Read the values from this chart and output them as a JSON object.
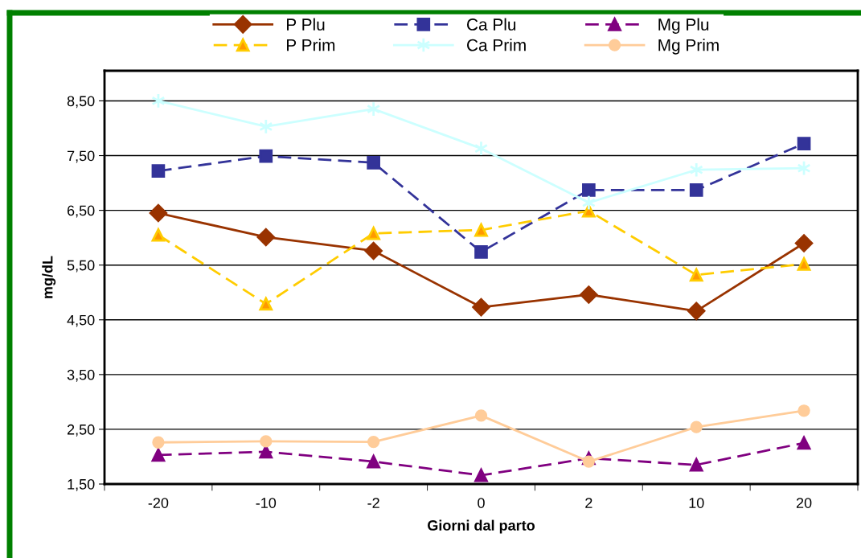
{
  "chart_data": {
    "type": "line",
    "xlabel": "Giorni dal parto",
    "ylabel": "mg/dL",
    "categories": [
      "-20",
      "-10",
      "-2",
      "0",
      "2",
      "10",
      "20"
    ],
    "series": [
      {
        "name": "P Plu",
        "color": "#993300",
        "marker": "diamond",
        "line_style": "solid",
        "values": [
          6.45,
          6.01,
          5.76,
          4.73,
          4.96,
          4.66,
          5.9
        ]
      },
      {
        "name": "Ca Plu",
        "color": "#333399",
        "marker": "square",
        "line_style": "dashed",
        "values": [
          7.22,
          7.49,
          7.37,
          5.74,
          6.87,
          6.87,
          7.72
        ]
      },
      {
        "name": "Mg Plu",
        "color": "#800080",
        "marker": "triangle",
        "line_style": "dashed",
        "values": [
          2.03,
          2.09,
          1.91,
          1.66,
          1.97,
          1.85,
          2.25
        ]
      },
      {
        "name": "P Prim",
        "color": "#FFCC00",
        "marker": "triangle",
        "line_style": "dashed",
        "values": [
          6.05,
          4.79,
          6.08,
          6.14,
          6.49,
          5.32,
          5.52
        ]
      },
      {
        "name": "Ca Prim",
        "color": "#CCFFFF",
        "marker": "cross",
        "line_style": "solid",
        "values": [
          8.5,
          8.03,
          8.35,
          7.63,
          6.64,
          7.24,
          7.27
        ]
      },
      {
        "name": "Mg Prim",
        "color": "#FFCC99",
        "marker": "circle",
        "line_style": "solid",
        "values": [
          2.26,
          2.28,
          2.27,
          2.75,
          1.91,
          2.54,
          2.84
        ]
      }
    ],
    "ylim": [
      1.5,
      9.05
    ],
    "yticks": [
      {
        "value": 1.5,
        "label": "1,50"
      },
      {
        "value": 2.5,
        "label": "2,50"
      },
      {
        "value": 3.5,
        "label": "3,50"
      },
      {
        "value": 4.5,
        "label": "4,50"
      },
      {
        "value": 5.5,
        "label": "5,50"
      },
      {
        "value": 6.5,
        "label": "6,50"
      },
      {
        "value": 7.5,
        "label": "7,50"
      },
      {
        "value": 8.5,
        "label": "8,50"
      }
    ],
    "grid": "y",
    "legend": "top"
  }
}
